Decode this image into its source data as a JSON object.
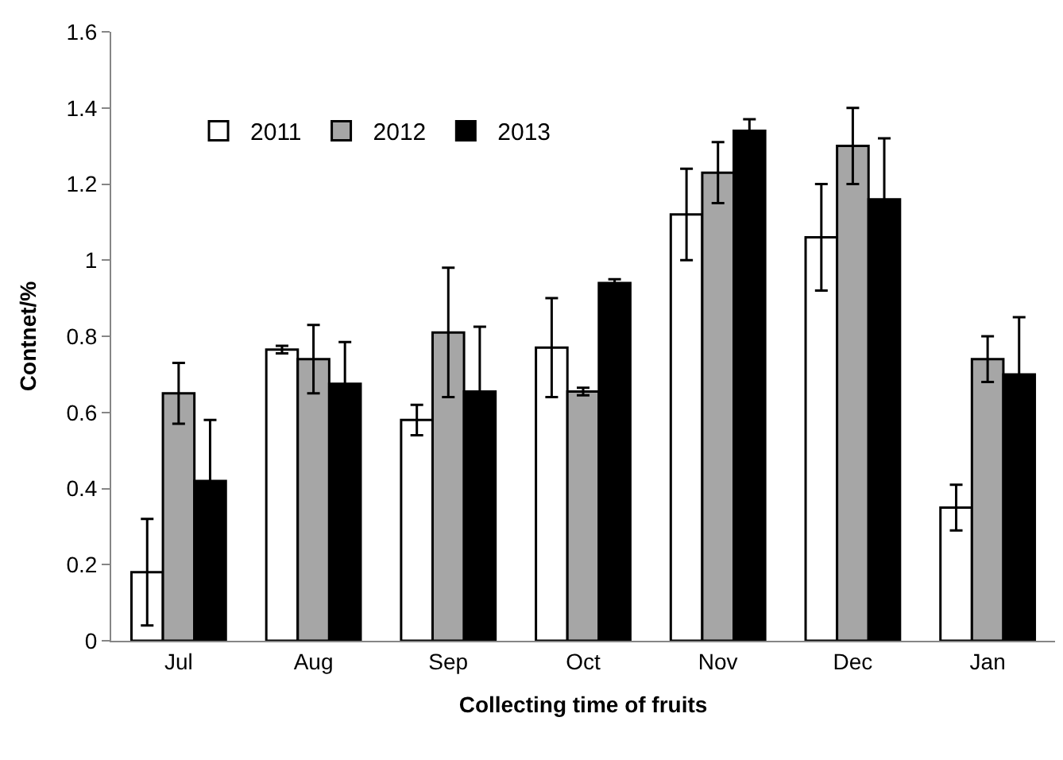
{
  "chart_data": {
    "type": "bar",
    "xlabel": "Collecting time of fruits",
    "ylabel": "Contnet/%",
    "categories": [
      "Jul",
      "Aug",
      "Sep",
      "Oct",
      "Nov",
      "Dec",
      "Jan"
    ],
    "series": [
      {
        "name": "2011",
        "color": "#ffffff",
        "values": [
          0.18,
          0.765,
          0.58,
          0.77,
          1.12,
          1.06,
          0.35
        ],
        "errors": [
          0.14,
          0.01,
          0.04,
          0.13,
          0.12,
          0.14,
          0.06
        ]
      },
      {
        "name": "2012",
        "color": "#a6a6a6",
        "values": [
          0.65,
          0.74,
          0.81,
          0.655,
          1.23,
          1.3,
          0.74
        ],
        "errors": [
          0.08,
          0.09,
          0.17,
          0.01,
          0.08,
          0.1,
          0.06
        ]
      },
      {
        "name": "2013",
        "color": "#000000",
        "values": [
          0.42,
          0.675,
          0.655,
          0.94,
          1.34,
          1.16,
          0.7
        ],
        "errors": [
          0.16,
          0.11,
          0.17,
          0.01,
          0.03,
          0.16,
          0.15
        ]
      }
    ],
    "ylim": [
      0,
      1.6
    ],
    "yticks": [
      0,
      0.2,
      0.4,
      0.6,
      0.8,
      1,
      1.2,
      1.4,
      1.6
    ],
    "legend": "top left"
  }
}
